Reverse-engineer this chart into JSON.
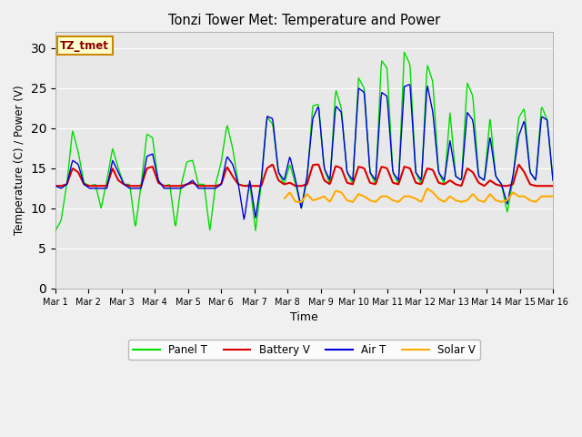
{
  "title": "Tonzi Tower Met: Temperature and Power",
  "xlabel": "Time",
  "ylabel": "Temperature (C) / Power (V)",
  "annotation": "TZ_tmet",
  "ylim": [
    0,
    32
  ],
  "yticks": [
    0,
    5,
    10,
    15,
    20,
    25,
    30
  ],
  "x_labels": [
    "Mar 1",
    "Mar 2",
    "Mar 3",
    "Mar 4",
    "Mar 5",
    "Mar 6",
    "Mar 7",
    "Mar 8",
    "Mar 9",
    "Mar 10",
    "Mar 11",
    "Mar 12",
    "Mar 13",
    "Mar 14",
    "Mar 15",
    "Mar 16"
  ],
  "fig_bg_color": "#f0f0f0",
  "plot_bg_color": "#e8e8e8",
  "grid_color": "#ffffff",
  "colors": {
    "panel_t": "#00dd00",
    "battery_v": "#dd0000",
    "air_t": "#0000dd",
    "solar_v": "#ffaa00"
  },
  "legend_labels": [
    "Panel T",
    "Battery V",
    "Air T",
    "Solar V"
  ],
  "panel_t": [
    7.2,
    8.5,
    13.0,
    19.8,
    17.0,
    13.2,
    12.8,
    13.0,
    10.0,
    13.5,
    17.5,
    15.0,
    13.0,
    13.0,
    7.5,
    13.0,
    19.3,
    18.8,
    13.2,
    12.8,
    13.0,
    7.5,
    13.0,
    15.8,
    16.0,
    13.0,
    13.0,
    7.2,
    13.0,
    15.8,
    20.5,
    17.5,
    13.0,
    12.8,
    13.0,
    7.2,
    13.0,
    21.4,
    20.5,
    14.5,
    13.0,
    15.5,
    13.0,
    10.0,
    13.5,
    22.8,
    23.0,
    15.0,
    13.0,
    24.9,
    22.5,
    14.5,
    13.0,
    26.3,
    25.0,
    14.5,
    13.0,
    28.5,
    27.5,
    14.5,
    13.0,
    29.5,
    28.0,
    14.5,
    13.0,
    28.0,
    25.8,
    14.5,
    13.0,
    22.0,
    14.0,
    13.5,
    25.7,
    24.0,
    14.0,
    13.5,
    21.4,
    14.0,
    13.0,
    9.5,
    13.5,
    21.3,
    22.5,
    14.5,
    13.5,
    22.8,
    21.0,
    13.5
  ],
  "battery_v": [
    12.8,
    12.8,
    13.0,
    15.0,
    14.5,
    13.0,
    12.8,
    12.8,
    12.8,
    12.8,
    15.0,
    13.5,
    13.0,
    12.8,
    12.8,
    12.8,
    15.0,
    15.2,
    13.2,
    12.8,
    12.8,
    12.8,
    12.8,
    13.0,
    13.2,
    12.8,
    12.8,
    12.8,
    12.8,
    13.0,
    15.2,
    14.0,
    13.0,
    12.8,
    12.8,
    12.8,
    12.8,
    15.0,
    15.5,
    13.5,
    13.0,
    13.2,
    12.8,
    12.8,
    13.0,
    15.4,
    15.5,
    13.5,
    13.0,
    15.3,
    15.0,
    13.2,
    13.0,
    15.2,
    15.0,
    13.2,
    13.0,
    15.2,
    15.0,
    13.2,
    13.0,
    15.2,
    15.0,
    13.2,
    13.0,
    15.0,
    14.8,
    13.2,
    13.0,
    13.5,
    13.0,
    12.8,
    15.0,
    14.5,
    13.2,
    12.8,
    13.5,
    13.0,
    12.8,
    12.8,
    13.0,
    15.5,
    14.5,
    13.0,
    12.8,
    12.8,
    12.8,
    12.8
  ],
  "air_t": [
    12.8,
    12.5,
    13.0,
    16.0,
    15.5,
    13.0,
    12.5,
    12.5,
    12.5,
    12.5,
    16.0,
    14.5,
    13.0,
    12.5,
    12.5,
    12.5,
    16.5,
    16.8,
    13.5,
    12.5,
    12.5,
    12.5,
    12.5,
    13.0,
    13.5,
    12.5,
    12.5,
    12.5,
    12.5,
    13.0,
    16.5,
    15.5,
    13.0,
    8.5,
    13.5,
    8.8,
    13.5,
    21.5,
    21.2,
    14.5,
    13.5,
    16.5,
    13.5,
    10.0,
    14.0,
    21.2,
    22.8,
    15.0,
    13.5,
    22.8,
    22.0,
    14.5,
    13.5,
    25.0,
    24.5,
    14.5,
    13.5,
    24.5,
    24.0,
    14.5,
    13.5,
    25.2,
    25.5,
    14.5,
    13.5,
    25.5,
    22.0,
    14.5,
    13.5,
    18.5,
    14.0,
    13.5,
    22.0,
    21.0,
    14.0,
    13.5,
    19.0,
    14.0,
    13.0,
    10.5,
    14.0,
    19.0,
    21.0,
    14.5,
    13.5,
    21.5,
    21.0,
    13.5
  ],
  "solar_v": [
    null,
    null,
    null,
    null,
    null,
    null,
    null,
    null,
    null,
    null,
    null,
    null,
    null,
    null,
    null,
    null,
    null,
    null,
    null,
    null,
    null,
    null,
    null,
    null,
    null,
    null,
    null,
    null,
    null,
    null,
    null,
    null,
    null,
    null,
    null,
    null,
    null,
    null,
    null,
    null,
    11.2,
    12.0,
    10.8,
    10.8,
    11.8,
    11.0,
    11.2,
    11.5,
    10.8,
    12.2,
    12.0,
    11.0,
    10.8,
    11.8,
    11.5,
    11.0,
    10.8,
    11.5,
    11.5,
    11.0,
    10.8,
    11.5,
    11.5,
    11.2,
    10.8,
    12.5,
    12.0,
    11.2,
    10.8,
    11.5,
    11.0,
    10.8,
    11.0,
    11.8,
    11.0,
    10.8,
    11.8,
    11.0,
    10.8,
    11.0,
    12.0,
    11.5,
    11.5,
    11.0,
    10.8,
    11.5,
    11.5,
    11.5
  ]
}
